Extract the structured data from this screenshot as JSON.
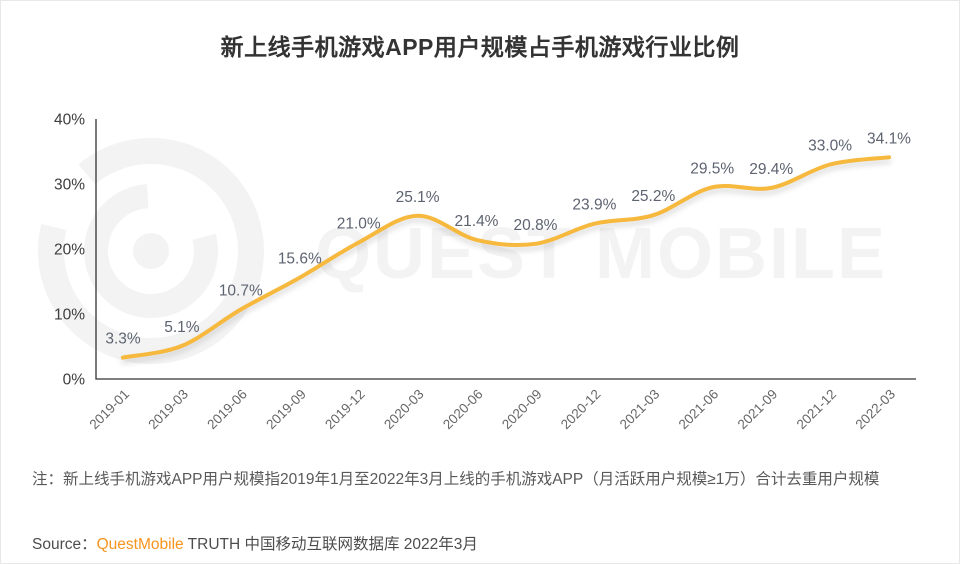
{
  "title": "新上线手机游戏APP用户规模占手机游戏行业比例",
  "watermark": {
    "logo_icon": "questmobile-rings-logo",
    "text": "QUEST MOBILE",
    "color": "#f3f3f3"
  },
  "chart_data": {
    "type": "line",
    "title": "新上线手机游戏APP用户规模占手机游戏行业比例",
    "categories": [
      "2019-01",
      "2019-03",
      "2019-06",
      "2019-09",
      "2019-12",
      "2020-03",
      "2020-06",
      "2020-09",
      "2020-12",
      "2021-03",
      "2021-06",
      "2021-09",
      "2021-12",
      "2022-03"
    ],
    "values": [
      3.3,
      5.1,
      10.7,
      15.6,
      21.0,
      25.1,
      21.4,
      20.8,
      23.9,
      25.2,
      29.5,
      29.4,
      33.0,
      34.1
    ],
    "point_labels": [
      "3.3%",
      "5.1%",
      "10.7%",
      "15.6%",
      "21.0%",
      "25.1%",
      "21.4%",
      "20.8%",
      "23.9%",
      "25.2%",
      "29.5%",
      "29.4%",
      "33.0%",
      "34.1%"
    ],
    "xlabel": "",
    "ylabel": "",
    "ylim": [
      0,
      40
    ],
    "ytick_values": [
      0,
      10,
      20,
      30,
      40
    ],
    "ytick_labels": [
      "0%",
      "10%",
      "20%",
      "30%",
      "40%"
    ],
    "grid": false,
    "legend": null,
    "smooth": true,
    "line_color": "#F6B83D",
    "label_color": "#5D6370",
    "axis_color": "#333333",
    "xtick_color": "#666666",
    "ytick_color": "#3d3d3d"
  },
  "note": {
    "text": "注：新上线手机游戏APP用户规模指2019年1月至2022年3月上线的手机游戏APP（月活跃用户规模≥1万）合计去重用户规模"
  },
  "source": {
    "label": "Source：",
    "brand": "QuestMobile",
    "rest": " TRUTH 中国移动互联网数据库 2022年3月",
    "brand_color": "#F7941E"
  }
}
